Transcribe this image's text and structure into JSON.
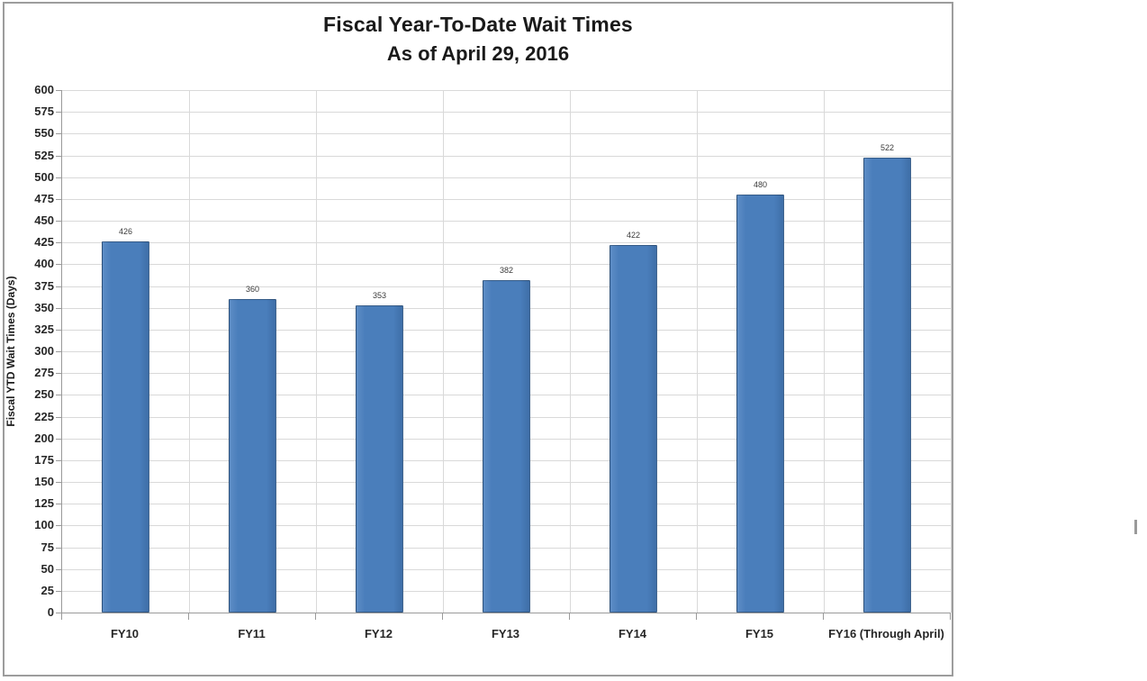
{
  "chart_data": {
    "type": "bar",
    "title": "Fiscal Year-To-Date Wait Times",
    "subtitle": "As of April 29, 2016",
    "ylabel": "Fiscal YTD Wait Times (Days)",
    "xlabel": "",
    "categories": [
      "FY10",
      "FY11",
      "FY12",
      "FY13",
      "FY14",
      "FY15",
      "FY16 (Through April)"
    ],
    "values": [
      426,
      360,
      353,
      382,
      422,
      480,
      522
    ],
    "data_labels": [
      "426",
      "360",
      "353",
      "382",
      "422",
      "480",
      "522"
    ],
    "ylim": [
      0,
      600
    ],
    "ytick_step": 25,
    "grid": true,
    "legend": "none",
    "bar_color": "#4a7ebb",
    "gridline_color": "#d9d9d9",
    "axis_color": "#9a9a9a",
    "frame_border_color": "#9d9d9d"
  }
}
